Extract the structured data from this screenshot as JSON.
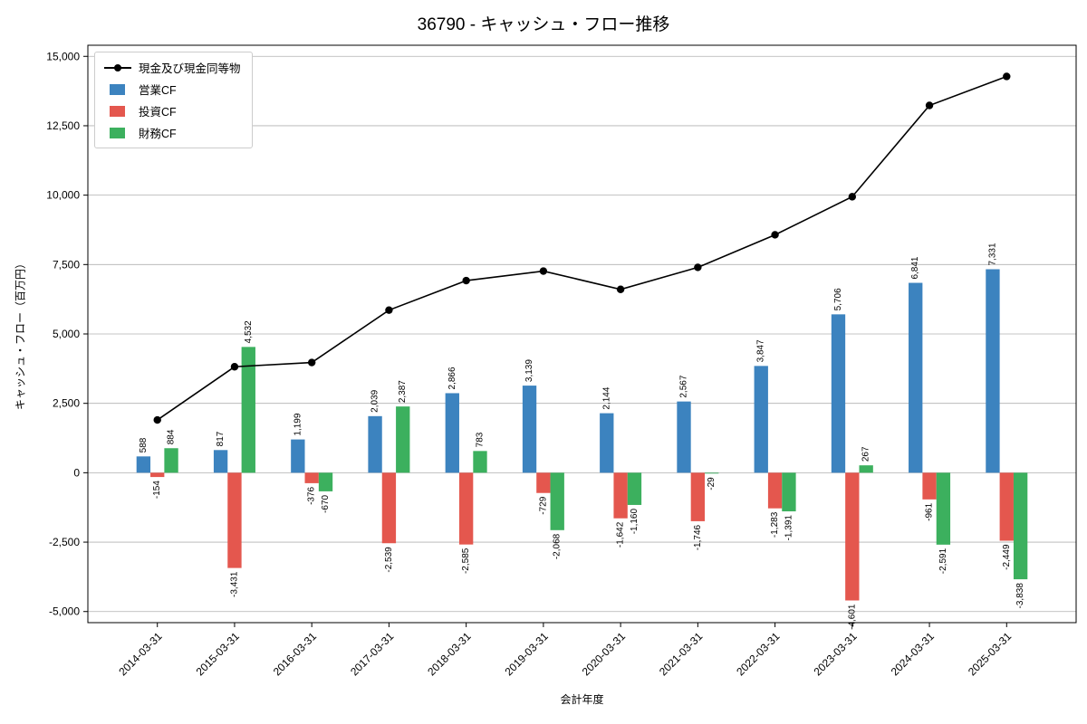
{
  "title": "36790 - キャッシュ・フロー推移",
  "axes": {
    "xlabel": "会計年度",
    "ylabel": "キャッシュ・フロー（百万円）"
  },
  "legend": {
    "items": [
      {
        "key": "cash",
        "label": "現金及び現金同等物",
        "marker": "line"
      },
      {
        "key": "operating",
        "label": "営業CF",
        "marker": "square"
      },
      {
        "key": "investing",
        "label": "投資CF",
        "marker": "square"
      },
      {
        "key": "financing",
        "label": "財務CF",
        "marker": "square"
      }
    ],
    "position": "upper left"
  },
  "colors": {
    "operating": "#3c83bf",
    "investing": "#e4574e",
    "financing": "#3cb05e",
    "cash_line": "#000000",
    "grid": "#b0b0b0",
    "axis": "#000000",
    "label_text": "#000000"
  },
  "chart_data": {
    "type": "bar+line",
    "title": "36790 - キャッシュ・フロー推移",
    "xlabel": "会計年度",
    "ylabel": "キャッシュ・フロー（百万円）",
    "categories": [
      "2014-03-31",
      "2015-03-31",
      "2016-03-31",
      "2017-03-31",
      "2018-03-31",
      "2019-03-31",
      "2020-03-31",
      "2021-03-31",
      "2022-03-31",
      "2023-03-31",
      "2024-03-31",
      "2025-03-31"
    ],
    "series": [
      {
        "key": "operating",
        "name": "営業CF",
        "type": "bar",
        "values": [
          588,
          817,
          1199,
          2039,
          2866,
          3139,
          2144,
          2567,
          3847,
          5706,
          6841,
          7331
        ]
      },
      {
        "key": "investing",
        "name": "投資CF",
        "type": "bar",
        "values": [
          -154,
          -3431,
          -376,
          -2539,
          -2585,
          -729,
          -1642,
          -1746,
          -1283,
          -4601,
          -961,
          -2449
        ]
      },
      {
        "key": "financing",
        "name": "財務CF",
        "type": "bar",
        "values": [
          884,
          4532,
          -670,
          2387,
          783,
          -2068,
          -1160,
          -29,
          -1391,
          267,
          -2591,
          -3838
        ]
      },
      {
        "key": "cash",
        "name": "現金及び現金同等物",
        "type": "line",
        "values_estimated": true,
        "values": [
          1900,
          3818,
          3971,
          5858,
          6922,
          7264,
          6606,
          7398,
          8571,
          9943,
          13232,
          14276
        ]
      }
    ],
    "ylim": [
      -5400,
      15400
    ],
    "yticks": [
      -5000,
      -2500,
      0,
      2500,
      5000,
      7500,
      10000,
      12500,
      15000
    ],
    "grid": true,
    "bar_value_labels": true,
    "x_tick_rotation": 45,
    "legend_position": "upper left"
  }
}
